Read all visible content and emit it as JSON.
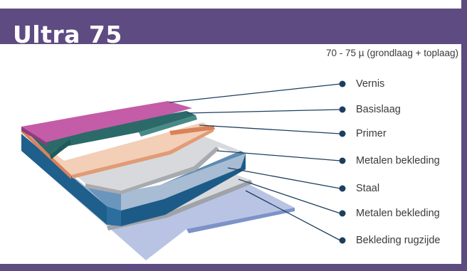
{
  "header": {
    "title": "Ultra 75"
  },
  "thickness_note": "70 - 75 µ (grondlaag + toplaag)",
  "layers": [
    {
      "label": "Vernis",
      "color": "#c45ca8"
    },
    {
      "label": "Basislaag",
      "color": "#1f5a5a"
    },
    {
      "label": "Primer",
      "color": "#d9825a"
    },
    {
      "label": "Metalen bekleding",
      "color": "#d8d9dc"
    },
    {
      "label": "Staal",
      "color": "#2c6f9e"
    },
    {
      "label": "Metalen bekleding",
      "color": "#d8d9dc"
    },
    {
      "label": "Bekleding rugzijde",
      "color": "#b9c4e4"
    }
  ],
  "colors": {
    "brand": "#5e4b82",
    "leader": "#1d3f5e"
  }
}
